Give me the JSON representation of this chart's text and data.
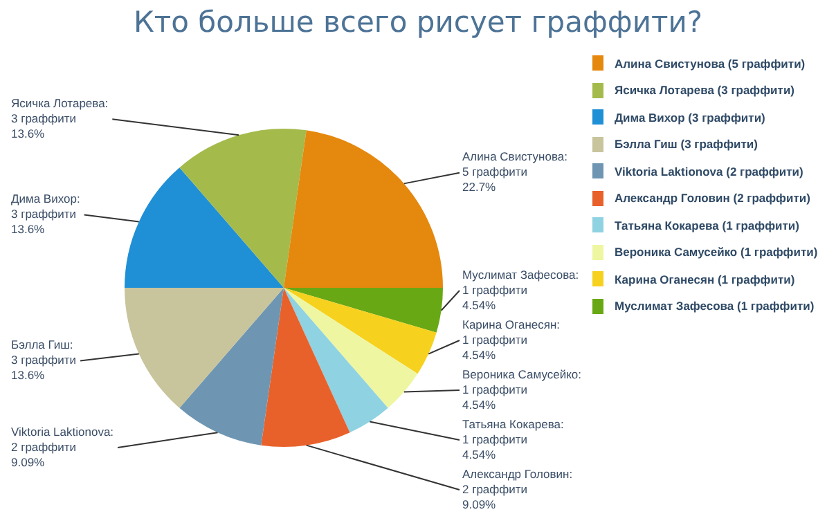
{
  "chart_data": {
    "type": "pie",
    "title": "Кто больше всего рисует граффити?",
    "categories": [
      "Алина Свистунова (5 граффити)",
      "Ясичка Лотарева (3 граффити)",
      "Дима Вихор (3 граффити)",
      "Бэлла Гиш (3 граффити)",
      "Viktoria Laktionova (2 граффити)",
      "Александр Головин (2 граффити)",
      "Татьяна Кокарева (1 граффити)",
      "Вероника Самусейко (1 граффити)",
      "Карина Оганесян (1 граффити)",
      "Муслимат Зафесова (1 граффити)"
    ],
    "values": [
      5,
      3,
      3,
      3,
      2,
      2,
      1,
      1,
      1,
      1
    ],
    "colors": [
      "#e5880e",
      "#a4bb4c",
      "#1f8fd6",
      "#c8c49c",
      "#6e96b2",
      "#e8612b",
      "#8fd2e2",
      "#eef6a2",
      "#f6d11e",
      "#69a815"
    ],
    "value_labels": [
      "Алина Свистунова:\n5 граффити\n22.7%",
      "Ясичка Лотарева:\n3 граффити\n13.6%",
      "Дима Вихор:\n3 граффити\n13.6%",
      "Бэлла Гиш:\n3 граффити\n13.6%",
      "Viktoria Laktionova:\n2 граффити\n9.09%",
      "Александр Головин:\n2 граффити\n9.09%",
      "Татьяна Кокарева:\n1 граффити\n4.54%",
      "Вероника Самусейко:\n1 граффити\n4.54%",
      "Карина Оганесян:\n1 граффити\n4.54%",
      "Муслимат Зафесова:\n1 граффити\n4.54%"
    ],
    "legend": "right"
  }
}
